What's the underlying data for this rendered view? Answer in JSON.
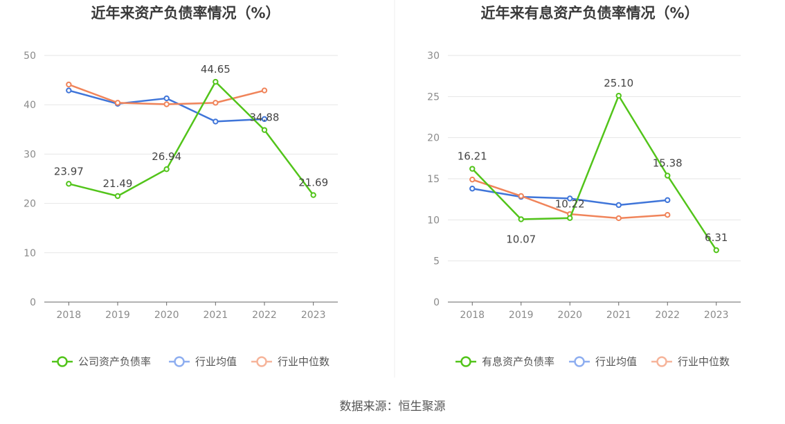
{
  "colors": {
    "green": "#52c41a",
    "blue": "#3f75d9",
    "orange": "#f0845a",
    "legend_blue": "#8eaef0",
    "legend_orange": "#f6b49a"
  },
  "chart_data": [
    {
      "type": "line",
      "title": "近年来资产负债率情况（%）",
      "categories": [
        "2018",
        "2019",
        "2020",
        "2021",
        "2022",
        "2023"
      ],
      "ylim": [
        0,
        50
      ],
      "yticks": [
        0,
        10,
        20,
        30,
        40,
        50
      ],
      "grid": true,
      "legend_position": "bottom",
      "series": [
        {
          "name": "公司资产负债率",
          "color": "#52c41a",
          "legend_color": "#52c41a",
          "labeled": true,
          "values": [
            23.97,
            21.49,
            26.94,
            44.65,
            34.88,
            21.69
          ],
          "labels": [
            "23.97",
            "21.49",
            "26.94",
            "44.65",
            "34.88",
            "21.69"
          ]
        },
        {
          "name": "行业均值",
          "color": "#3f75d9",
          "legend_color": "#8eaef0",
          "labeled": false,
          "values": [
            42.9,
            40.2,
            41.3,
            36.6,
            37.1,
            null
          ]
        },
        {
          "name": "行业中位数",
          "color": "#f0845a",
          "legend_color": "#f6b49a",
          "labeled": false,
          "values": [
            44.1,
            40.4,
            40.1,
            40.4,
            42.9,
            null
          ]
        }
      ]
    },
    {
      "type": "line",
      "title": "近年来有息资产负债率情况（%）",
      "categories": [
        "2018",
        "2019",
        "2020",
        "2021",
        "2022",
        "2023"
      ],
      "ylim": [
        0,
        30
      ],
      "yticks": [
        0,
        5,
        10,
        15,
        20,
        25,
        30
      ],
      "grid": true,
      "legend_position": "bottom",
      "series": [
        {
          "name": "有息资产负债率",
          "color": "#52c41a",
          "legend_color": "#52c41a",
          "labeled": true,
          "values": [
            16.21,
            10.07,
            10.22,
            25.1,
            15.38,
            6.31
          ],
          "labels": [
            "16.21",
            "10.07",
            "10.22",
            "25.10",
            "15.38",
            "6.31"
          ]
        },
        {
          "name": "行业均值",
          "color": "#3f75d9",
          "legend_color": "#8eaef0",
          "labeled": false,
          "values": [
            13.8,
            12.8,
            12.6,
            11.8,
            12.4,
            null
          ]
        },
        {
          "name": "行业中位数",
          "color": "#f0845a",
          "legend_color": "#f6b49a",
          "labeled": false,
          "values": [
            14.9,
            12.9,
            10.7,
            10.2,
            10.6,
            null
          ]
        }
      ]
    }
  ],
  "footer": {
    "source": "数据来源：恒生聚源"
  }
}
